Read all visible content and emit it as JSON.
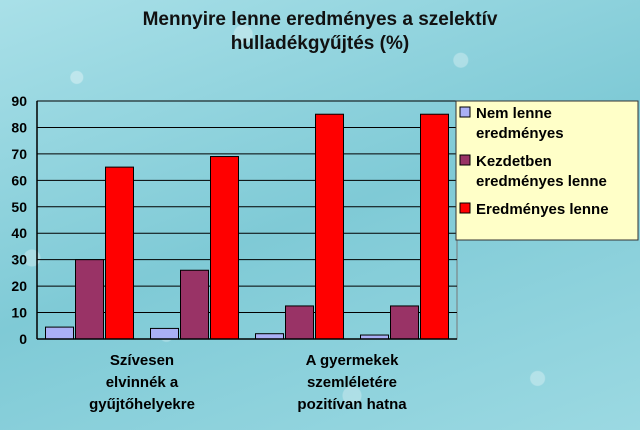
{
  "chart_data": {
    "type": "bar",
    "title_lines": [
      "Mennyire lenne eredményes a szelektív",
      "hulladékgyűjtés (%)"
    ],
    "categories": [
      [
        "Szívesen",
        "elvinnék a",
        "gyűjtőhelyekre"
      ],
      [],
      [
        "A gyermekek",
        "szemléletére",
        "pozitívan hatna"
      ],
      []
    ],
    "ylim": [
      0,
      90
    ],
    "yticks": [
      "0",
      "10",
      "20",
      "30",
      "40",
      "50",
      "60",
      "70",
      "80",
      "90"
    ],
    "grid": true,
    "legend_position": "right",
    "series": [
      {
        "name_lines": [
          "Nem lenne",
          "eredményes"
        ],
        "color": "#aab0f5",
        "values": [
          4.5,
          4,
          2,
          1.5
        ]
      },
      {
        "name_lines": [
          "Kezdetben",
          "eredményes lenne"
        ],
        "color": "#993366",
        "values": [
          30,
          26,
          12.5,
          12.5
        ]
      },
      {
        "name_lines": [
          "Eredményes lenne"
        ],
        "color": "#ff0000",
        "values": [
          65,
          69,
          85,
          85
        ]
      }
    ]
  }
}
